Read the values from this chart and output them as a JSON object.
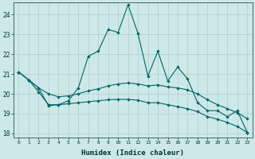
{
  "xlabel": "Humidex (Indice chaleur)",
  "background_color": "#cde8e8",
  "grid_color": "#b0cccc",
  "line_color": "#006666",
  "xlim": [
    -0.5,
    23.5
  ],
  "ylim": [
    17.8,
    24.6
  ],
  "yticks": [
    18,
    19,
    20,
    21,
    22,
    23,
    24
  ],
  "xticks": [
    0,
    1,
    2,
    3,
    4,
    5,
    6,
    7,
    8,
    9,
    10,
    11,
    12,
    13,
    14,
    15,
    16,
    17,
    18,
    19,
    20,
    21,
    22,
    23
  ],
  "series1_x": [
    0,
    1,
    2,
    3,
    4,
    5,
    6,
    7,
    8,
    9,
    10,
    11,
    12,
    13,
    14,
    15,
    16,
    17,
    18,
    19,
    20,
    21,
    22,
    23
  ],
  "series1_y": [
    21.1,
    20.7,
    20.3,
    19.4,
    19.45,
    19.65,
    20.3,
    21.9,
    22.15,
    23.25,
    23.1,
    24.5,
    23.05,
    20.9,
    22.15,
    20.65,
    21.35,
    20.75,
    19.55,
    19.15,
    19.15,
    18.85,
    19.15,
    18.05
  ],
  "series2_x": [
    0,
    1,
    2,
    3,
    4,
    5,
    6,
    7,
    8,
    9,
    10,
    11,
    12,
    13,
    14,
    15,
    16,
    17,
    18,
    19,
    20,
    21,
    22,
    23
  ],
  "series2_y": [
    21.1,
    20.7,
    20.3,
    20.0,
    19.85,
    19.9,
    20.0,
    20.15,
    20.25,
    20.4,
    20.5,
    20.55,
    20.5,
    20.4,
    20.45,
    20.35,
    20.3,
    20.2,
    20.0,
    19.7,
    19.45,
    19.25,
    19.05,
    18.75
  ],
  "series3_x": [
    0,
    1,
    2,
    3,
    4,
    5,
    6,
    7,
    8,
    9,
    10,
    11,
    12,
    13,
    14,
    15,
    16,
    17,
    18,
    19,
    20,
    21,
    22,
    23
  ],
  "series3_y": [
    21.1,
    20.7,
    20.1,
    19.45,
    19.45,
    19.5,
    19.55,
    19.6,
    19.65,
    19.7,
    19.72,
    19.72,
    19.68,
    19.55,
    19.55,
    19.45,
    19.35,
    19.25,
    19.1,
    18.85,
    18.72,
    18.55,
    18.35,
    18.05
  ]
}
